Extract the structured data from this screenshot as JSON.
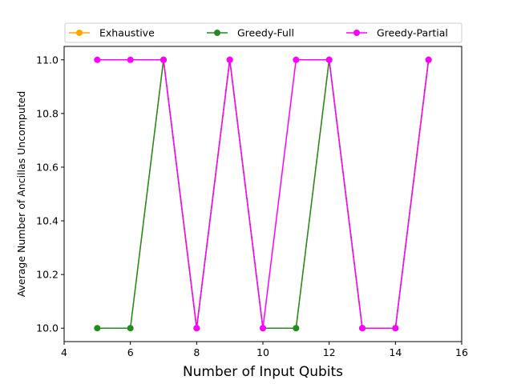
{
  "chart_data": {
    "type": "line",
    "xlabel": "Number of Input Qubits",
    "ylabel": "Average Number of Ancillas Uncomputed",
    "xlim": [
      4,
      16
    ],
    "ylim": [
      9.95,
      11.05
    ],
    "xticks": [
      "4",
      "6",
      "8",
      "10",
      "12",
      "14",
      "16"
    ],
    "yticks": [
      "10.0",
      "10.2",
      "10.4",
      "10.6",
      "10.8",
      "11.0"
    ],
    "grid": false,
    "legend_placement": "top-center",
    "series": [
      {
        "name": "Exhaustive",
        "color": "#ffa500",
        "x": [
          5,
          6,
          7,
          8,
          9,
          10,
          11,
          12,
          13,
          14,
          15
        ],
        "y": [
          10.0,
          10.0,
          11.0,
          10.0,
          11.0,
          10.0,
          10.0,
          11.0,
          10.0,
          10.0,
          11.0
        ]
      },
      {
        "name": "Greedy-Full",
        "color": "#228b22",
        "x": [
          5,
          6,
          7,
          8,
          9,
          10,
          11,
          12,
          13,
          14,
          15
        ],
        "y": [
          10.0,
          10.0,
          11.0,
          10.0,
          11.0,
          10.0,
          10.0,
          11.0,
          10.0,
          10.0,
          11.0
        ]
      },
      {
        "name": "Greedy-Partial",
        "color": "#ff00ff",
        "x": [
          5,
          6,
          7,
          8,
          9,
          10,
          11,
          12,
          13,
          14,
          15
        ],
        "y": [
          11.0,
          11.0,
          11.0,
          10.0,
          11.0,
          10.0,
          11.0,
          11.0,
          10.0,
          10.0,
          11.0
        ]
      }
    ]
  }
}
